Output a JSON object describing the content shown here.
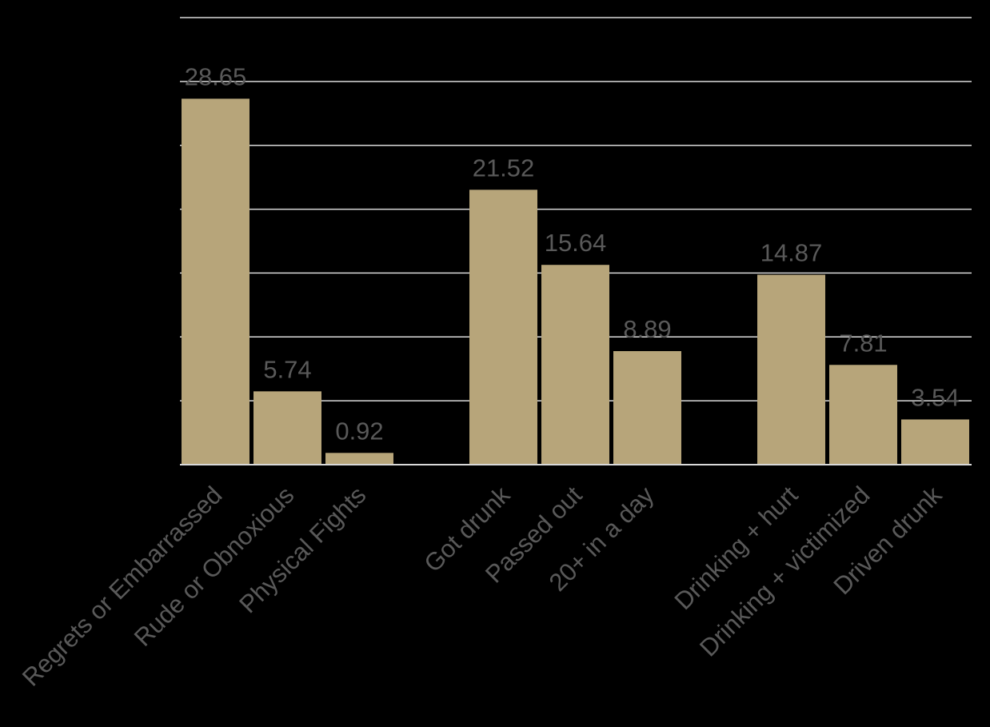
{
  "chart_data": {
    "type": "bar",
    "title": "",
    "xlabel": "",
    "ylabel": "",
    "ylim": [
      0,
      35
    ],
    "grid": true,
    "gridline_step": 5,
    "legend": "none",
    "bar_color": "#b7a57a",
    "background_color": "#000000",
    "label_color": "#595959",
    "groups": [
      {
        "categories": [
          "Regrets or Embarrassed",
          "Rude or Obnoxious",
          "Physical Fights"
        ],
        "values": [
          28.65,
          5.74,
          0.92
        ]
      },
      {
        "categories": [
          "Got drunk",
          "Passed out",
          "20+ in a day"
        ],
        "values": [
          21.52,
          15.64,
          8.89
        ]
      },
      {
        "categories": [
          "Drinking + hurt",
          "Drinking + victimized",
          "Driven drunk"
        ],
        "values": [
          14.87,
          7.81,
          3.54
        ]
      }
    ]
  }
}
